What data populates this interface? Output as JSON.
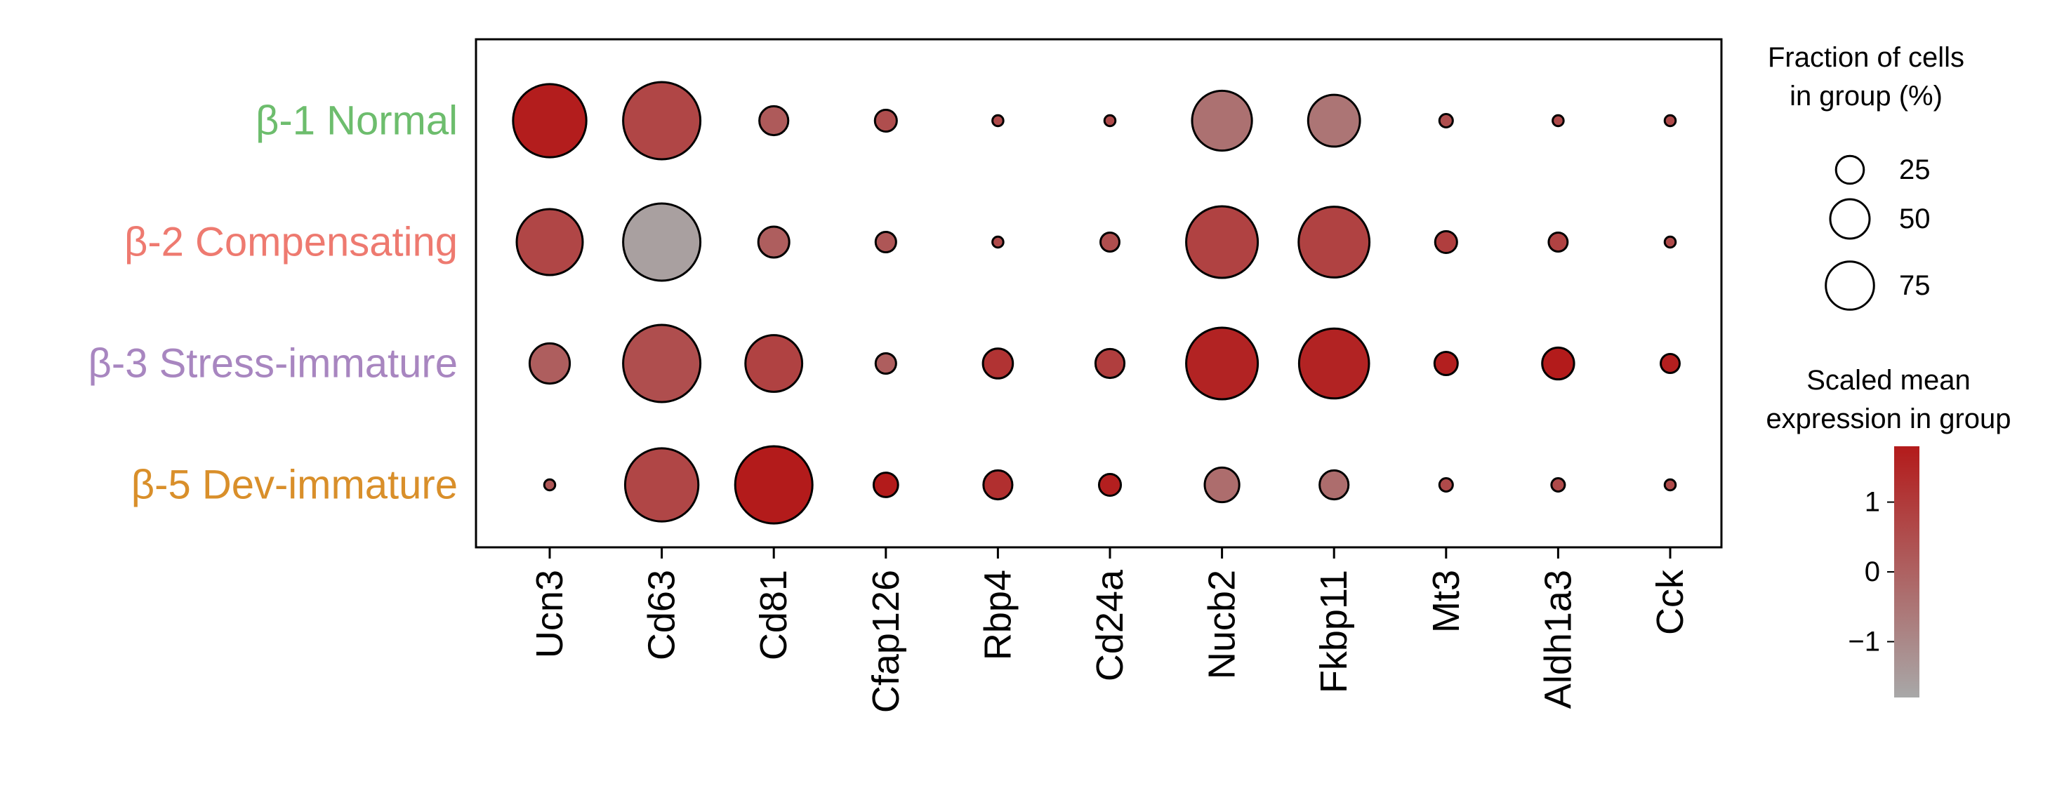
{
  "chart_data": {
    "type": "dotplot",
    "genes": [
      "Ucn3",
      "Cd63",
      "Cd81",
      "Cfap126",
      "Rbp4",
      "Cd24a",
      "Nucb2",
      "Fkbp11",
      "Mt3",
      "Aldh1a3",
      "Cck"
    ],
    "groups": [
      {
        "label": "β-1 Normal",
        "color": "#6dbd6d"
      },
      {
        "label": "β-2 Compensating",
        "color": "#ee7a70"
      },
      {
        "label": "β-3 Stress-immature",
        "color": "#a886c0"
      },
      {
        "label": "β-5 Dev-immature",
        "color": "#d98f2a"
      }
    ],
    "fraction_pct": [
      [
        90,
        100,
        14,
        8,
        2,
        2,
        60,
        45,
        3,
        2,
        2
      ],
      [
        73,
        100,
        16,
        7,
        2,
        6,
        86,
        84,
        8,
        6,
        2
      ],
      [
        27,
        100,
        54,
        7,
        15,
        14,
        86,
        82,
        9,
        17,
        6
      ],
      [
        2,
        90,
        100,
        10,
        14,
        8,
        20,
        14,
        3,
        3,
        2
      ]
    ],
    "scaled_expression": [
      [
        1.75,
        0.7,
        0.2,
        0.5,
        0.6,
        0.6,
        -0.4,
        -0.5,
        0.5,
        0.6,
        0.6
      ],
      [
        0.7,
        -1.6,
        0.1,
        0.3,
        0.6,
        0.5,
        0.8,
        0.8,
        0.9,
        0.8,
        0.6
      ],
      [
        0.1,
        0.5,
        0.8,
        0.1,
        1.2,
        0.9,
        1.6,
        1.6,
        1.7,
        1.8,
        1.7
      ],
      [
        0.3,
        0.7,
        1.8,
        1.8,
        1.3,
        1.7,
        -0.3,
        -0.3,
        0.6,
        0.6,
        0.6
      ]
    ],
    "size_legend": {
      "title_line1": "Fraction of cells",
      "title_line2": "in group (%)",
      "values": [
        25,
        50,
        75
      ],
      "labels": [
        "25",
        "50",
        "75"
      ]
    },
    "color_legend": {
      "title_line1": "Scaled mean",
      "title_line2": "expression in group",
      "range": [
        -1.8,
        1.8
      ],
      "ticks": [
        1,
        0,
        -1
      ],
      "tick_labels": [
        "1",
        "0",
        "−1"
      ],
      "color_low": "#a8a8a8",
      "color_high": "#b31b1b"
    }
  }
}
